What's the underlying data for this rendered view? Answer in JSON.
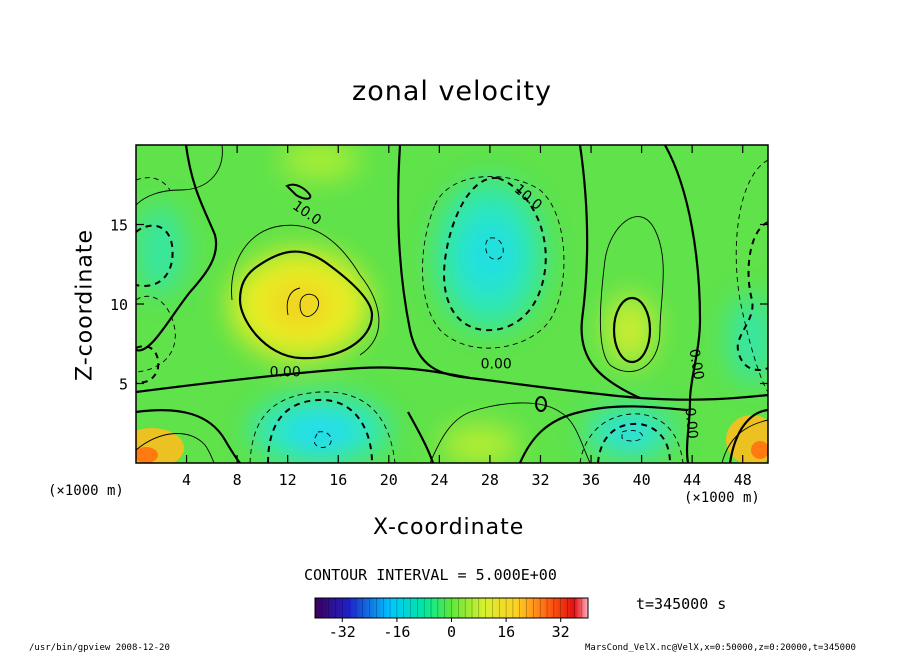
{
  "chart_data": {
    "type": "heatmap",
    "title": "zonal velocity",
    "xlabel": "X-coordinate",
    "ylabel": "Z-coordinate",
    "x_unit_label": "(×1000 m)",
    "y_unit_label": "(×1000 m)",
    "xlim": [
      0,
      50
    ],
    "ylim": [
      0,
      20
    ],
    "x_ticks": [
      4,
      8,
      12,
      16,
      20,
      24,
      28,
      32,
      36,
      40,
      44,
      48
    ],
    "y_ticks": [
      5,
      10,
      15
    ],
    "contour_labels": [
      {
        "text": "10.0",
        "x": 13.5,
        "y": 15.7,
        "rotation": 35
      },
      {
        "text": "10.0",
        "x": 31.0,
        "y": 16.7,
        "rotation": 40
      },
      {
        "text": "0.00",
        "x": 11.8,
        "y": 5.7,
        "rotation": 0
      },
      {
        "text": "0.00",
        "x": 28.5,
        "y": 6.2,
        "rotation": 0
      },
      {
        "text": "0.00",
        "x": 44.3,
        "y": 6.2,
        "rotation": 80
      },
      {
        "text": "0.00",
        "x": 43.9,
        "y": 2.5,
        "rotation": 85
      }
    ],
    "contour_interval_text": "CONTOUR INTERVAL = 5.000E+00",
    "colorbar": {
      "range": [
        -40,
        40
      ],
      "tick_values": [
        -32,
        -16,
        0,
        16,
        32
      ],
      "tick_labels": [
        "-32",
        "-16",
        "0",
        "16",
        "32"
      ]
    },
    "time_label": "t=345000 s",
    "footer_left": "/usr/bin/gpview   2008-12-20",
    "footer_right": "MarsCond_VelX.nc@VelX,x=0:50000,z=0:20000,t=345000"
  }
}
